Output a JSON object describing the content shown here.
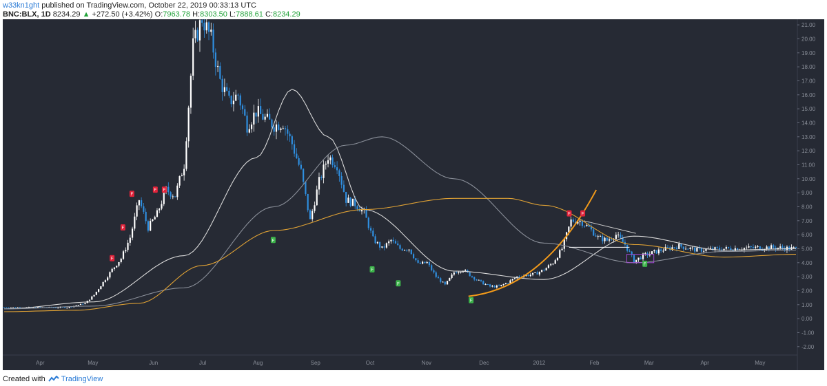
{
  "header": {
    "user": "w33kn1ght",
    "published_text": "published on TradingView.com, October 22, 2019 00:33:13 UTC",
    "symbol": "BNC:BLX, 1D",
    "last": "8234.29",
    "change": "+272.50 (+3.42%)",
    "open_label": "O:",
    "open": "7963.78",
    "high_label": "H:",
    "high": "8303.50",
    "low_label": "L:",
    "low": "7888.61",
    "close_label": "C:",
    "close": "8234.29"
  },
  "footer": {
    "created_with": "Created with",
    "brand": "TradingView"
  },
  "colors": {
    "background": "#262a34",
    "up_candle": "#ffffff",
    "down_candle": "#2f8fe0",
    "sma_fast": "#d9d9d9",
    "sma_mid": "#8a8f99",
    "sma_slow": "#e0a234",
    "curve": "#f29a1a",
    "sell_marker": "#e0243b",
    "buy_marker": "#3cb34a"
  },
  "chart_data": {
    "type": "line",
    "title": "",
    "ylim": [
      -2.6,
      21.4
    ],
    "y_ticks": [
      "21.00",
      "20.00",
      "19.00",
      "18.00",
      "17.00",
      "16.00",
      "15.00",
      "14.00",
      "13.00",
      "12.00",
      "11.00",
      "10.00",
      "9.00",
      "8.00",
      "7.00",
      "6.00",
      "5.00",
      "4.00",
      "3.00",
      "2.00",
      "1.00",
      "0.00",
      "-1.00",
      "-2.00"
    ],
    "x_ticks": [
      "Apr",
      "May",
      "Jun",
      "Jul",
      "Aug",
      "Sep",
      "Oct",
      "Nov",
      "Dec",
      "2012",
      "Feb",
      "Mar",
      "Apr",
      "May"
    ],
    "price_path": [
      [
        0,
        0.8
      ],
      [
        7,
        0.8
      ],
      [
        9,
        1.1
      ],
      [
        10,
        1.7
      ],
      [
        12,
        3.5
      ],
      [
        13,
        4.3
      ],
      [
        14,
        5.8
      ],
      [
        15,
        8.5
      ],
      [
        16,
        6.5
      ],
      [
        17,
        7.5
      ],
      [
        18,
        9.2
      ],
      [
        19,
        8.8
      ],
      [
        20,
        11
      ],
      [
        21,
        19.5
      ],
      [
        22,
        21.5
      ],
      [
        23,
        20
      ],
      [
        24,
        17
      ],
      [
        25,
        15.5
      ],
      [
        26,
        16
      ],
      [
        27,
        13.8
      ],
      [
        28,
        14.8
      ],
      [
        30,
        13.8
      ],
      [
        31,
        14
      ],
      [
        32,
        12.5
      ],
      [
        33,
        10.5
      ],
      [
        34,
        7
      ],
      [
        35,
        9.8
      ],
      [
        36,
        11.6
      ],
      [
        37,
        11
      ],
      [
        38,
        8.5
      ],
      [
        39,
        8.2
      ],
      [
        40,
        7.6
      ],
      [
        41,
        5.7
      ],
      [
        42,
        5
      ],
      [
        43,
        5.6
      ],
      [
        44,
        5
      ],
      [
        45,
        5
      ],
      [
        46,
        3.9
      ],
      [
        47,
        4
      ],
      [
        48,
        3
      ],
      [
        49,
        2.4
      ],
      [
        50,
        3.3
      ],
      [
        51,
        3.5
      ],
      [
        52,
        3
      ],
      [
        53,
        2.6
      ],
      [
        54,
        2.3
      ],
      [
        55,
        2.3
      ],
      [
        56,
        2.6
      ],
      [
        57,
        3
      ],
      [
        58,
        3.1
      ],
      [
        59,
        3.2
      ],
      [
        60,
        3.5
      ],
      [
        61,
        4
      ],
      [
        62,
        5
      ],
      [
        63,
        7
      ],
      [
        64,
        7
      ],
      [
        65,
        6.5
      ],
      [
        66,
        5.8
      ],
      [
        67,
        5.6
      ],
      [
        68,
        6
      ],
      [
        69,
        5.3
      ],
      [
        70,
        4.1
      ],
      [
        71,
        4.5
      ],
      [
        72,
        4.7
      ],
      [
        73,
        4.9
      ],
      [
        75,
        5.2
      ],
      [
        77,
        4.9
      ],
      [
        80,
        5
      ],
      [
        85,
        5.1
      ],
      [
        88,
        5
      ]
    ],
    "series": [
      {
        "name": "",
        "x": [
          0,
          10,
          20,
          28,
          32,
          36,
          40,
          50,
          60,
          70,
          80,
          88
        ],
        "values": [
          0.7,
          1.2,
          4.5,
          11.5,
          16.4,
          13,
          7.8,
          3.4,
          2.8,
          5.9,
          4.9,
          5.0
        ]
      },
      {
        "name": "",
        "x": [
          0,
          10,
          20,
          30,
          38,
          42,
          50,
          60,
          70,
          80,
          88
        ],
        "values": [
          0.7,
          0.9,
          2.2,
          8,
          12.4,
          13,
          10,
          5.4,
          4,
          4.8,
          4.9
        ]
      },
      {
        "name": "",
        "x": [
          0,
          8,
          15,
          22,
          30,
          40,
          50,
          56,
          60,
          70,
          80,
          88
        ],
        "values": [
          0.5,
          0.6,
          1.1,
          3.8,
          6.3,
          7.8,
          8.6,
          8.6,
          8.1,
          5.3,
          4.4,
          4.6
        ]
      }
    ],
    "markers": [
      {
        "type": "sell",
        "label": "F",
        "x": 12.0,
        "y": 4.3
      },
      {
        "type": "sell",
        "label": "F",
        "x": 13.2,
        "y": 6.5
      },
      {
        "type": "sell",
        "label": "F",
        "x": 14.2,
        "y": 8.9
      },
      {
        "type": "sell",
        "label": "F",
        "x": 16.8,
        "y": 9.2
      },
      {
        "type": "sell",
        "label": "F",
        "x": 17.8,
        "y": 9.2
      },
      {
        "type": "buy",
        "label": "F",
        "x": 29.9,
        "y": 5.6
      },
      {
        "type": "buy",
        "label": "F",
        "x": 40.9,
        "y": 3.5
      },
      {
        "type": "buy",
        "label": "F",
        "x": 43.8,
        "y": 2.5
      },
      {
        "type": "buy",
        "label": "F",
        "x": 51.9,
        "y": 1.3
      },
      {
        "type": "sell",
        "label": "F",
        "x": 62.8,
        "y": 7.5
      },
      {
        "type": "sell",
        "label": "F",
        "x": 64.3,
        "y": 7.5
      },
      {
        "type": "buy",
        "label": "F",
        "x": 71.2,
        "y": 3.9
      }
    ]
  }
}
